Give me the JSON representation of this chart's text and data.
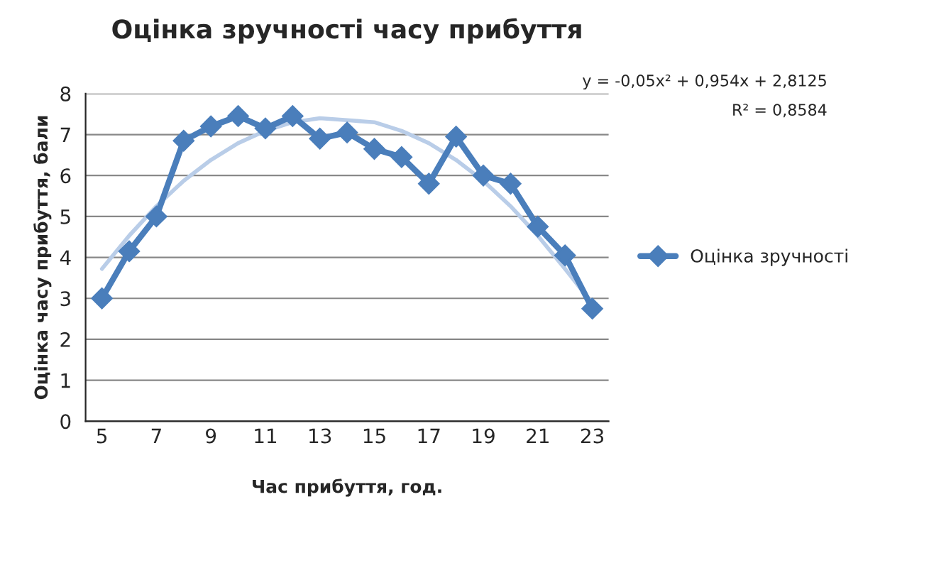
{
  "chart_data": {
    "type": "line",
    "title": "Оцінка зручності часу прибуття",
    "xlabel": "Час прибуття, год.",
    "ylabel": "Оцінка часу прибуття, бали",
    "categories": [
      "5",
      null,
      "7",
      null,
      "9",
      null,
      "11",
      null,
      "13",
      null,
      "15",
      null,
      "17",
      null,
      "19",
      null,
      "21",
      null,
      "23"
    ],
    "series": [
      {
        "name": "Оцінка зручності",
        "color": "#4a7ebb",
        "marker": "diamond",
        "values": [
          3.0,
          4.15,
          5.0,
          6.85,
          7.2,
          7.45,
          7.15,
          7.45,
          6.9,
          7.05,
          6.65,
          6.45,
          5.8,
          6.95,
          6.0,
          5.8,
          4.75,
          4.05,
          2.75
        ]
      },
      {
        "color": "#b9cde8",
        "marker": "none",
        "values": [
          3.72,
          4.53,
          5.25,
          5.87,
          6.38,
          6.79,
          7.09,
          7.3,
          7.4,
          7.35,
          7.3,
          7.09,
          6.79,
          6.38,
          5.87,
          5.25,
          4.53,
          3.72,
          2.88
        ]
      }
    ],
    "ylim": [
      0,
      8
    ],
    "yticks": [
      0,
      1,
      2,
      3,
      4,
      5,
      6,
      7,
      8
    ],
    "grid": "y",
    "legend": "right",
    "annotations": [
      "y = -0,05x² + 0,954x + 2,8125",
      "R² = 0,8584"
    ]
  }
}
